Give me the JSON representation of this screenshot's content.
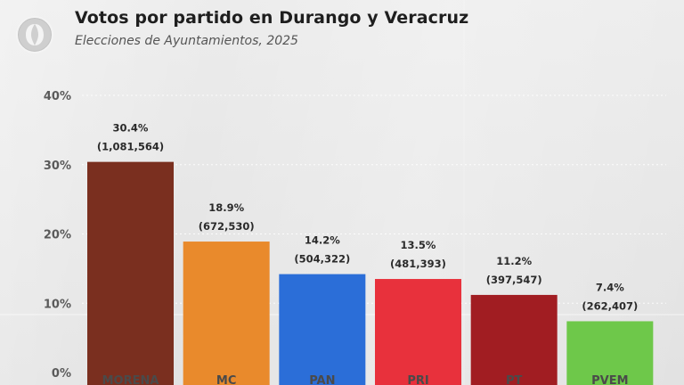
{
  "header": {
    "title": "Votos por partido en Durango y Veracruz",
    "subtitle": "Elecciones de Ayuntamientos, 2025"
  },
  "logo": {
    "icon": "newspaper-logo-icon"
  },
  "chart_data": {
    "type": "bar",
    "title": "Votos por partido en Durango y Veracruz",
    "subtitle": "Elecciones de Ayuntamientos, 2025",
    "categories": [
      "MORENA",
      "MC",
      "PAN",
      "PRI",
      "PT",
      "PVEM"
    ],
    "values": [
      30.4,
      18.9,
      14.2,
      13.5,
      11.2,
      7.4
    ],
    "value_labels": [
      "30.4%",
      "18.9%",
      "14.2%",
      "13.5%",
      "11.2%",
      "7.4%"
    ],
    "vote_labels": [
      "(1,081,564)",
      "(672,530)",
      "(504,322)",
      "(481,393)",
      "(397,547)",
      "(262,407)"
    ],
    "colors": [
      "#7a2f1f",
      "#e98a2c",
      "#2b6ed8",
      "#e8313c",
      "#a11d22",
      "#6ec84a"
    ],
    "ylim": [
      0,
      40
    ],
    "yticks": [
      0,
      10,
      20,
      30,
      40
    ],
    "ytick_labels": [
      "0%",
      "10%",
      "20%",
      "30%",
      "40%"
    ],
    "grid": true,
    "xlabel": "",
    "ylabel": ""
  }
}
